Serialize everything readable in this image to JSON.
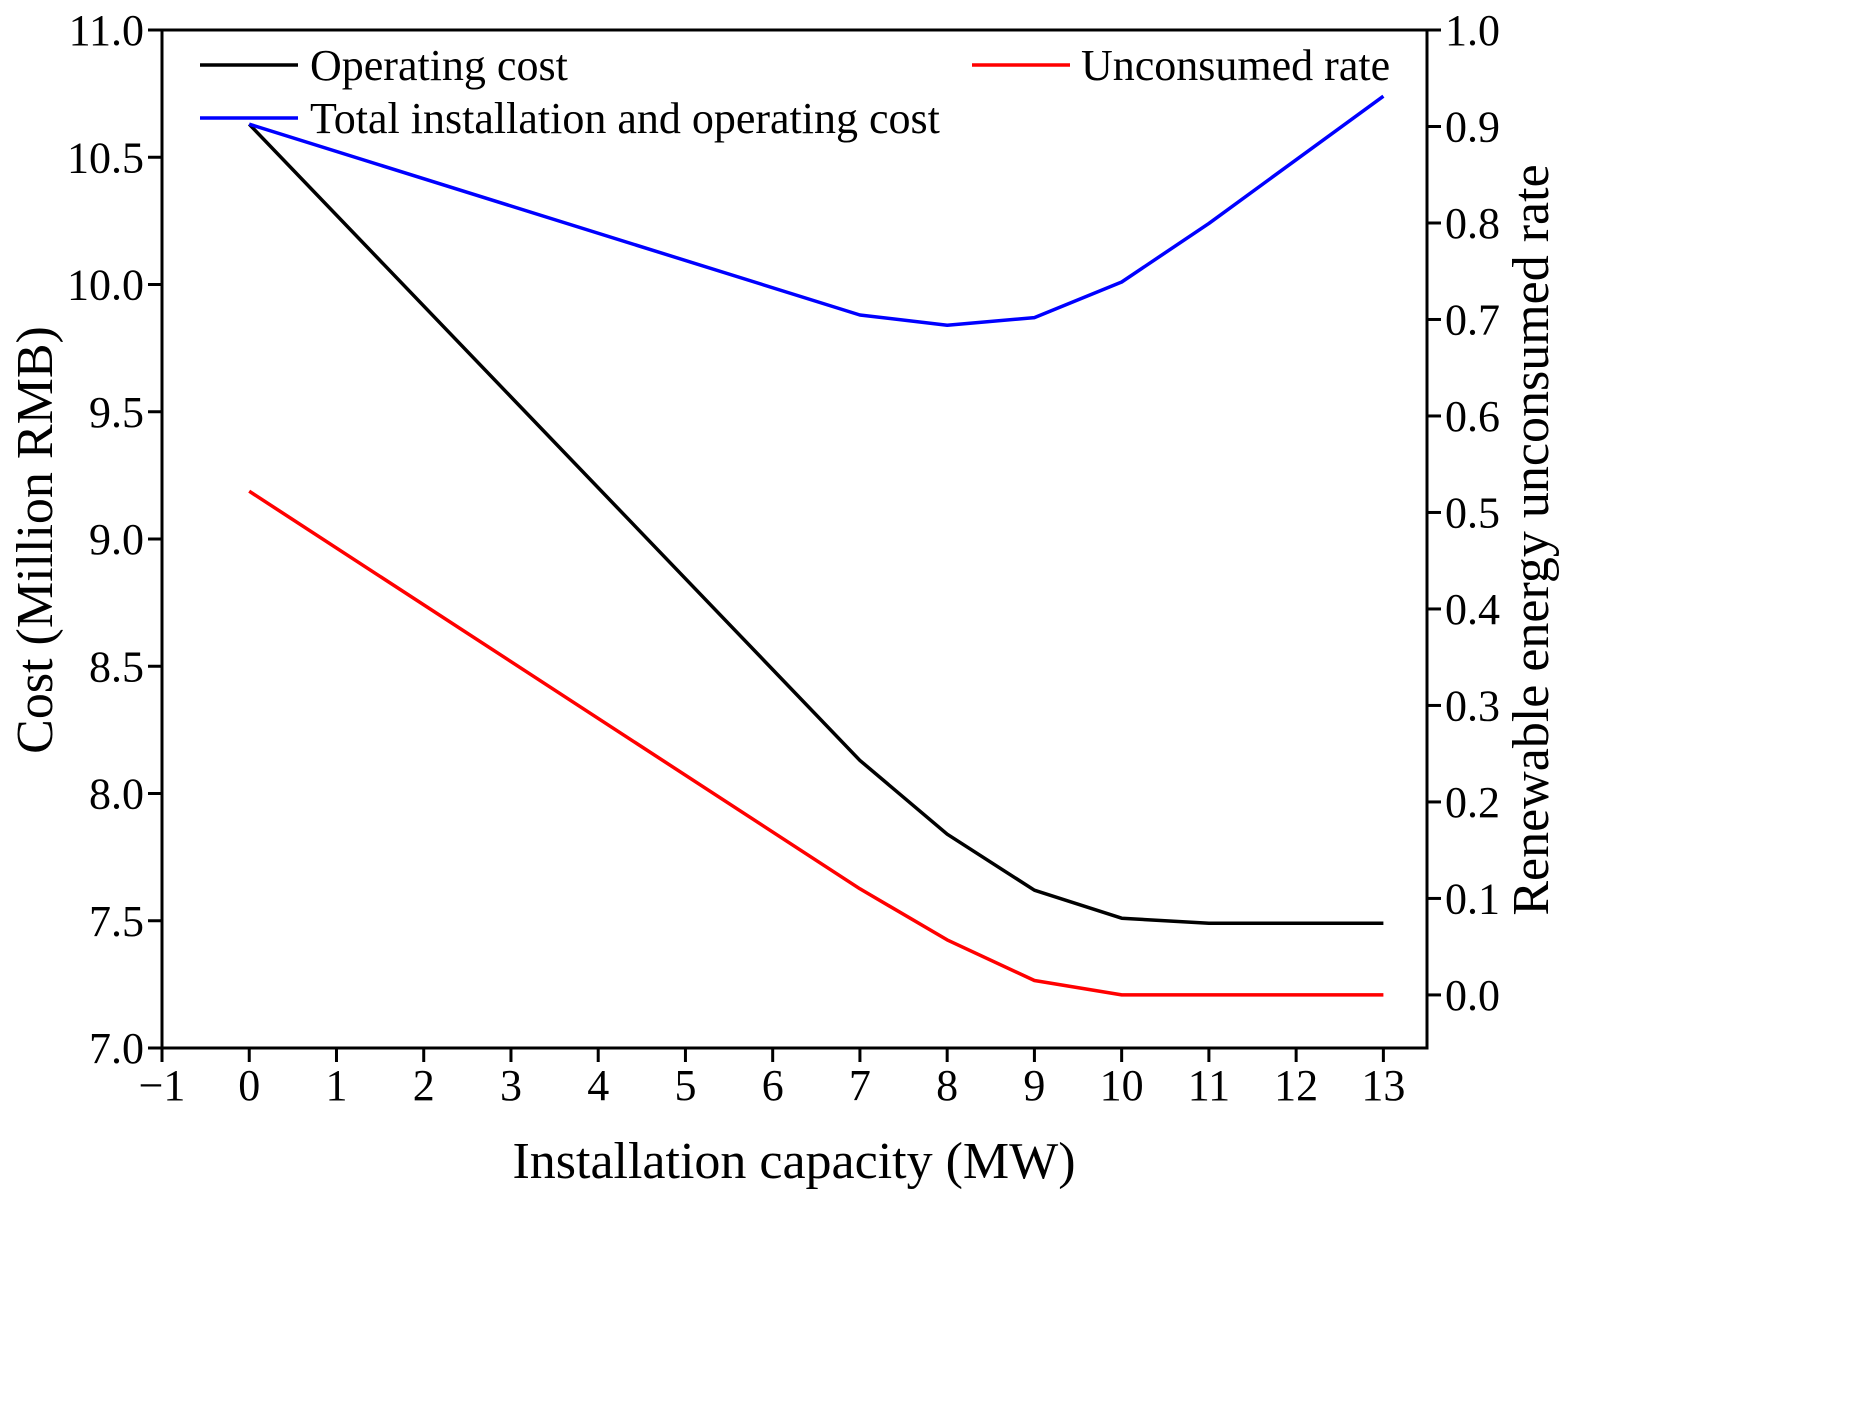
{
  "chart_data": {
    "type": "line",
    "title": "",
    "xlabel": "Installation capacity (MW)",
    "ylabel_left": "Cost (Million RMB)",
    "ylabel_right": "Renewable energy unconsumed rate",
    "xlim": [
      -1,
      13.5
    ],
    "ylim_left": [
      7.0,
      11.0
    ],
    "ylim_right": [
      -0.055,
      1.0
    ],
    "x_ticks": [
      -1,
      0,
      1,
      2,
      3,
      4,
      5,
      6,
      7,
      8,
      9,
      10,
      11,
      12,
      13
    ],
    "x_tick_labels": [
      "−1",
      "0",
      "1",
      "2",
      "3",
      "4",
      "5",
      "6",
      "7",
      "8",
      "9",
      "10",
      "11",
      "12",
      "13"
    ],
    "y_left_ticks": [
      7.0,
      7.5,
      8.0,
      8.5,
      9.0,
      9.5,
      10.0,
      10.5,
      11.0
    ],
    "y_left_tick_labels": [
      "7.0",
      "7.5",
      "8.0",
      "8.5",
      "9.0",
      "9.5",
      "10.0",
      "10.5",
      "11.0"
    ],
    "y_right_ticks": [
      0.0,
      0.1,
      0.2,
      0.3,
      0.4,
      0.5,
      0.6,
      0.7,
      0.8,
      0.9,
      1.0
    ],
    "y_right_tick_labels": [
      "0.0",
      "0.1",
      "0.2",
      "0.3",
      "0.4",
      "0.5",
      "0.6",
      "0.7",
      "0.8",
      "0.9",
      "1.0"
    ],
    "grid": false,
    "legend": [
      "top-left",
      "top-right"
    ],
    "series": [
      {
        "name": "Operating cost",
        "axis": "left",
        "color": "#000000",
        "x": [
          0,
          7,
          8,
          9,
          10,
          11,
          12,
          13
        ],
        "values": [
          10.63,
          8.13,
          7.84,
          7.62,
          7.51,
          7.49,
          7.49,
          7.49
        ]
      },
      {
        "name": "Total installation and operating cost",
        "axis": "left",
        "color": "#0000ff",
        "x": [
          0,
          7,
          8,
          9,
          10,
          11,
          12,
          13
        ],
        "values": [
          10.63,
          9.88,
          9.84,
          9.87,
          10.01,
          10.24,
          10.49,
          10.74
        ]
      },
      {
        "name": "Unconsumed rate",
        "axis": "right",
        "color": "#ff0000",
        "x": [
          0,
          7,
          8,
          9,
          10,
          11,
          12,
          13
        ],
        "values": [
          0.522,
          0.11,
          0.057,
          0.015,
          0.0,
          0.0,
          0.0,
          0.0
        ]
      }
    ]
  }
}
